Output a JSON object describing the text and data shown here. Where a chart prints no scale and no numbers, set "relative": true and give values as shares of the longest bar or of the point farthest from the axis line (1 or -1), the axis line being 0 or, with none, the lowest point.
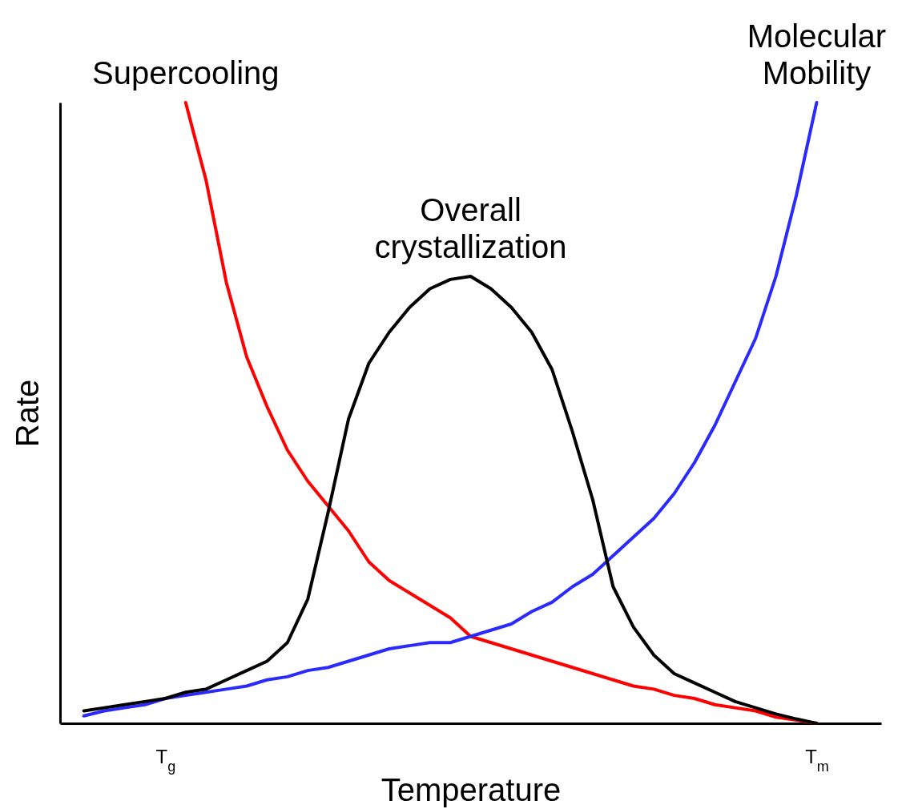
{
  "chart_data": {
    "type": "line",
    "relative": true,
    "xlabel": "Temperature",
    "ylabel": "Rate",
    "categories": [
      null,
      null,
      null,
      null,
      null,
      "T$_{g}$",
      null,
      null,
      null,
      null,
      null,
      null,
      null,
      null,
      null,
      null,
      null,
      null,
      null,
      null,
      null,
      null,
      null,
      null,
      null,
      null,
      null,
      null,
      null,
      null,
      null,
      null,
      null,
      null,
      null,
      null,
      null,
      "T$_{m}$",
      null,
      null,
      null
    ],
    "grid": false,
    "legend": false,
    "marker": "none",
    "line_style": "solid",
    "series": [
      {
        "name": "Supercooling",
        "color": "#ff0000",
        "values": [
          null,
          null,
          null,
          null,
          null,
          null,
          1.0,
          0.875,
          0.71,
          0.59,
          0.51,
          0.44,
          0.39,
          0.35,
          0.31,
          0.26,
          0.23,
          0.21,
          0.19,
          0.17,
          0.14,
          0.13,
          0.12,
          0.11,
          0.1,
          0.09,
          0.08,
          0.07,
          0.06,
          0.055,
          0.045,
          0.04,
          0.03,
          0.025,
          0.02,
          0.01,
          0.005,
          0.0,
          null,
          null,
          null
        ]
      },
      {
        "name": "Molecular Mobility",
        "color": "#2a2aff",
        "values": [
          null,
          0.012,
          0.02,
          0.025,
          0.03,
          0.04,
          0.045,
          0.05,
          0.055,
          0.06,
          0.07,
          0.075,
          0.085,
          0.09,
          0.1,
          0.11,
          0.12,
          0.125,
          0.13,
          0.13,
          0.14,
          0.15,
          0.16,
          0.18,
          0.195,
          0.22,
          0.24,
          0.27,
          0.3,
          0.33,
          0.37,
          0.42,
          0.48,
          0.55,
          0.62,
          0.72,
          0.85,
          1.0,
          null,
          null,
          null
        ]
      },
      {
        "name": "Overall crystallization",
        "color": "#000000",
        "values": [
          null,
          0.02,
          0.025,
          0.03,
          0.035,
          0.04,
          0.05,
          0.055,
          0.07,
          0.085,
          0.1,
          0.13,
          0.2,
          0.34,
          0.49,
          0.58,
          0.63,
          0.67,
          0.7,
          0.715,
          0.72,
          0.7,
          0.67,
          0.63,
          0.57,
          0.47,
          0.36,
          0.22,
          0.155,
          0.11,
          0.08,
          0.065,
          0.05,
          0.035,
          0.025,
          0.015,
          0.007,
          0.0,
          null,
          null,
          null
        ]
      }
    ]
  }
}
